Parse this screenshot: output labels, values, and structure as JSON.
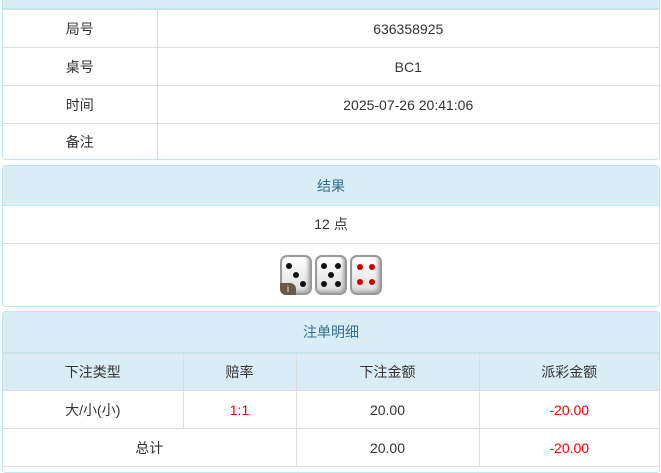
{
  "info": {
    "rows": [
      {
        "label": "局号",
        "value": "636358925"
      },
      {
        "label": "桌号",
        "value": "BC1"
      },
      {
        "label": "时间",
        "value": "2025-07-26 20:41:06"
      },
      {
        "label": "备注",
        "value": ""
      }
    ]
  },
  "result": {
    "title": "结果",
    "points": "12 点",
    "dice": [
      3,
      5,
      4
    ],
    "info_badge": "i"
  },
  "bets": {
    "title": "注单明细",
    "headers": [
      "下注类型",
      "赔率",
      "下注金额",
      "派彩金额"
    ],
    "rows": [
      {
        "type": "大/小(小)",
        "odds": "1:1",
        "amount": "20.00",
        "payout": "-20.00"
      }
    ],
    "total": {
      "label": "总计",
      "amount": "20.00",
      "payout": "-20.00"
    }
  },
  "colors": {
    "header_bg": "#d9edf7",
    "negative": "#ee0000"
  }
}
